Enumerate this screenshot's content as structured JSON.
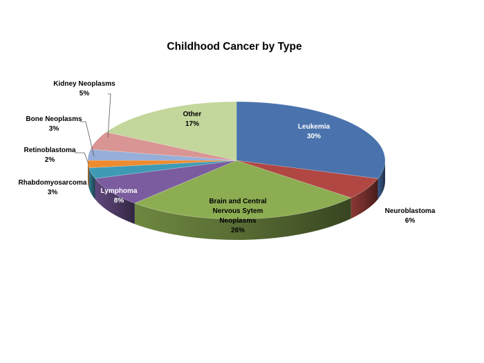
{
  "chart_data": {
    "type": "pie",
    "style": "3d",
    "title": "Childhood Cancer by Type",
    "unit": "%",
    "slices": [
      {
        "label": "Leukemia",
        "value": 30,
        "color": "#4a72ac"
      },
      {
        "label": "Neuroblastoma",
        "value": 6,
        "color": "#b04743"
      },
      {
        "label": "Brain and Central Nervous Sytem Neoplasms",
        "value": 26,
        "color": "#8dad52"
      },
      {
        "label": "Lymphoma",
        "value": 8,
        "color": "#7a5c9f"
      },
      {
        "label": "Rhabdomyosarcoma",
        "value": 3,
        "color": "#3f9bb5"
      },
      {
        "label": "Retinoblastoma",
        "value": 2,
        "color": "#ee8b2f"
      },
      {
        "label": "Bone Neoplasms",
        "value": 3,
        "color": "#97aed9"
      },
      {
        "label": "Kidney Neoplasms",
        "value": 5,
        "color": "#d99594"
      },
      {
        "label": "Other",
        "value": 17,
        "color": "#c3d69b"
      }
    ]
  }
}
